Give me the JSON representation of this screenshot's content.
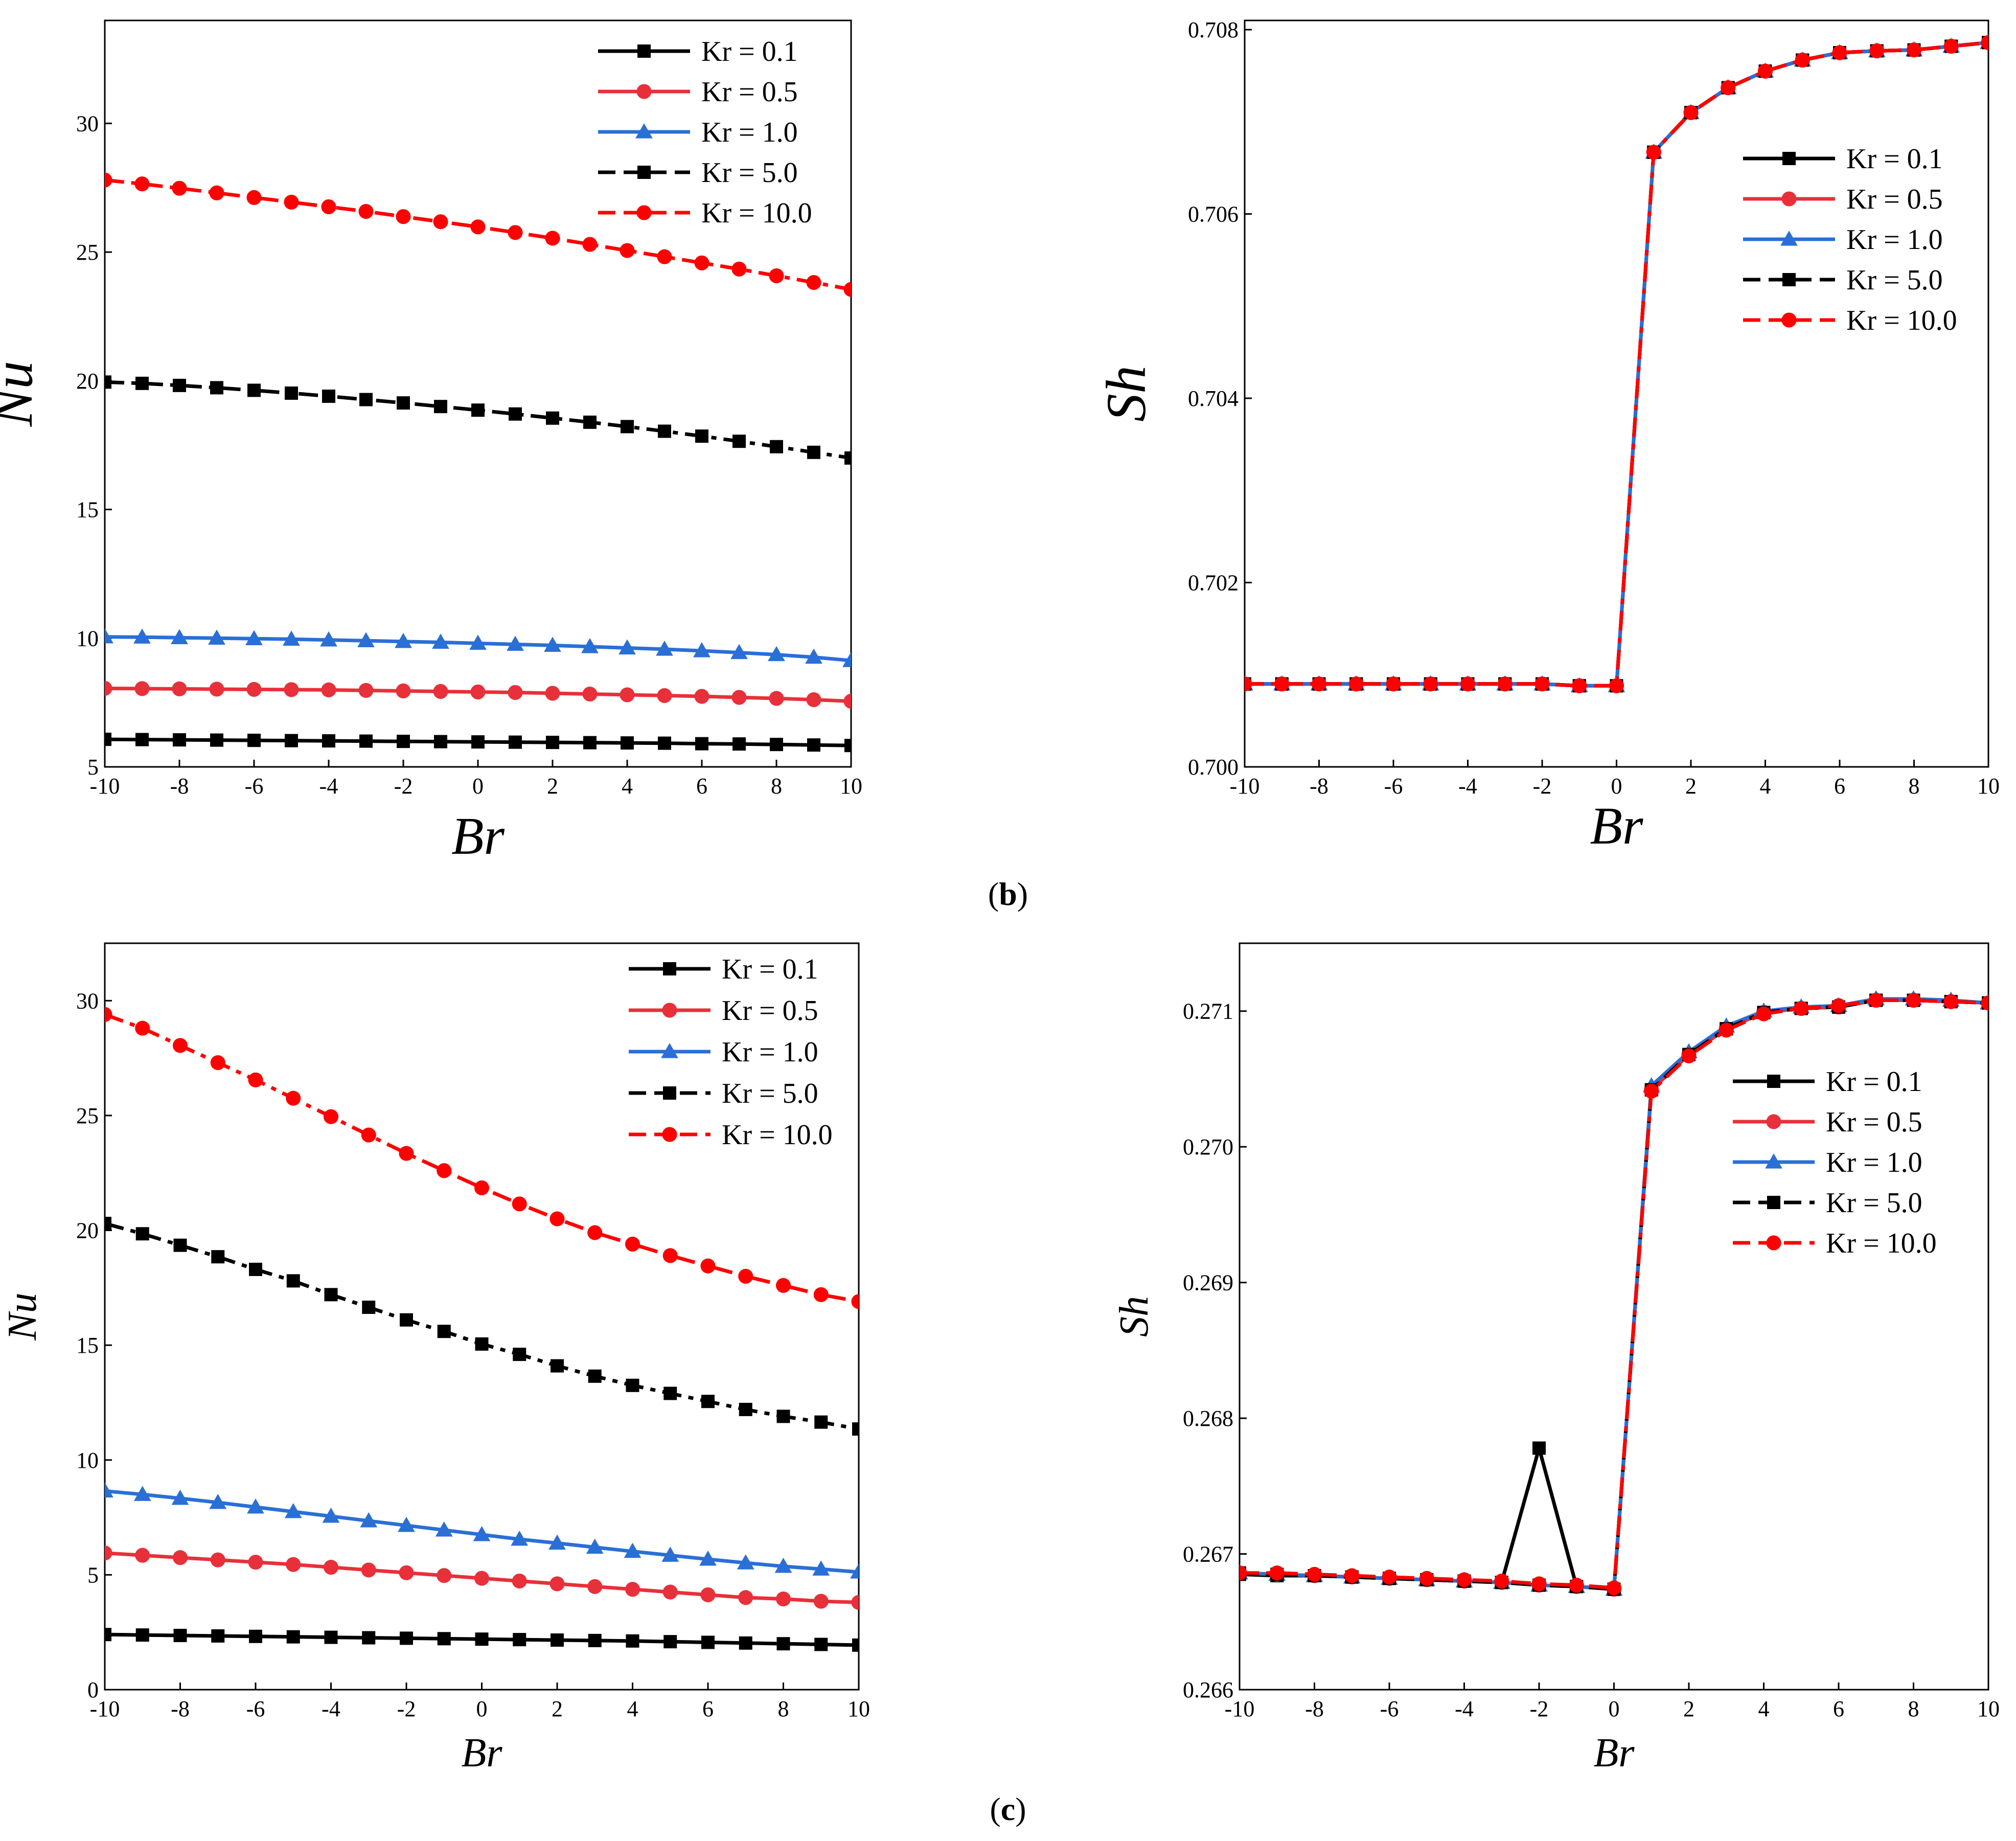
{
  "colors": {
    "black": "#000000",
    "red": "#e8303a",
    "blue": "#2a6fd6",
    "red_dash": "#ff0000"
  },
  "legend_labels": [
    "Kr = 0.1",
    "Kr = 0.5",
    "Kr = 1.0",
    "Kr = 5.0",
    "Kr = 10.0"
  ],
  "panel_labels": [
    {
      "open": "(",
      "letter": "b",
      "close": ")"
    },
    {
      "open": "(",
      "letter": "c",
      "close": ")"
    }
  ],
  "chart_data": [
    {
      "type": "line",
      "xlabel": "Br",
      "ylabel": "Nu",
      "xlim": [
        -10,
        10
      ],
      "ylim": [
        5,
        34
      ],
      "xticks": [
        -10,
        -8,
        -6,
        -4,
        -2,
        0,
        2,
        4,
        6,
        8,
        10
      ],
      "xtick_labels": [
        "-10",
        "-8",
        "-6",
        "-4",
        "-2",
        "0",
        "2",
        "4",
        "6",
        "8",
        "10"
      ],
      "yticks": [
        5,
        10,
        15,
        20,
        25,
        30
      ],
      "ytick_labels": [
        "5",
        "10",
        "15",
        "20",
        "25",
        "30"
      ],
      "legend_position": "top-right",
      "x": [
        -10,
        -9,
        -8,
        -7,
        -6,
        -5,
        -4,
        -3,
        -2,
        -1,
        0,
        1,
        2,
        3,
        4,
        5,
        6,
        7,
        8,
        9,
        10
      ],
      "series": [
        {
          "name": "Kr = 0.1",
          "color": "#000000",
          "dash": "solid",
          "marker": "square",
          "values": [
            6.07,
            6.06,
            6.05,
            6.04,
            6.03,
            6.02,
            6.01,
            6.0,
            5.99,
            5.98,
            5.97,
            5.96,
            5.95,
            5.94,
            5.93,
            5.92,
            5.9,
            5.89,
            5.87,
            5.85,
            5.83
          ]
        },
        {
          "name": "Kr = 0.5",
          "color": "#e8303a",
          "dash": "solid",
          "marker": "circle",
          "values": [
            8.05,
            8.04,
            8.03,
            8.02,
            8.01,
            8.0,
            7.99,
            7.97,
            7.95,
            7.93,
            7.91,
            7.89,
            7.86,
            7.83,
            7.8,
            7.77,
            7.74,
            7.7,
            7.66,
            7.61,
            7.55
          ]
        },
        {
          "name": "Kr = 1.0",
          "color": "#2a6fd6",
          "dash": "solid",
          "marker": "triangle",
          "values": [
            10.05,
            10.04,
            10.02,
            10.0,
            9.98,
            9.96,
            9.93,
            9.9,
            9.87,
            9.84,
            9.8,
            9.76,
            9.72,
            9.67,
            9.62,
            9.57,
            9.51,
            9.44,
            9.36,
            9.26,
            9.13
          ]
        },
        {
          "name": "Kr = 5.0",
          "color": "#000000",
          "dash": "dashdot",
          "marker": "square",
          "values": [
            19.95,
            19.9,
            19.82,
            19.73,
            19.63,
            19.52,
            19.4,
            19.27,
            19.14,
            19.0,
            18.86,
            18.71,
            18.55,
            18.39,
            18.22,
            18.04,
            17.85,
            17.65,
            17.44,
            17.22,
            17.0
          ]
        },
        {
          "name": "Kr = 10.0",
          "color": "#ff0000",
          "dash": "dashdot",
          "marker": "circle",
          "values": [
            27.8,
            27.65,
            27.48,
            27.3,
            27.12,
            26.94,
            26.76,
            26.58,
            26.38,
            26.18,
            25.98,
            25.76,
            25.54,
            25.3,
            25.06,
            24.82,
            24.58,
            24.34,
            24.08,
            23.82,
            23.55
          ]
        }
      ]
    },
    {
      "type": "line",
      "xlabel": "Br",
      "ylabel": "Sh",
      "xlim": [
        -10,
        10
      ],
      "ylim": [
        0.7,
        0.7081
      ],
      "xticks": [
        -10,
        -8,
        -6,
        -4,
        -2,
        0,
        2,
        4,
        6,
        8,
        10
      ],
      "xtick_labels": [
        "-10",
        "-8",
        "-6",
        "-4",
        "-2",
        "0",
        "2",
        "4",
        "6",
        "8",
        "10"
      ],
      "yticks": [
        0.7,
        0.702,
        0.704,
        0.706,
        0.708
      ],
      "ytick_labels": [
        "0.700",
        "0.702",
        "0.704",
        "0.706",
        "0.708"
      ],
      "legend_position": "right",
      "x": [
        -10,
        -9,
        -8,
        -7,
        -6,
        -5,
        -4,
        -3,
        -2,
        -1,
        0,
        1,
        2,
        3,
        4,
        5,
        6,
        7,
        8,
        9,
        10
      ],
      "series": [
        {
          "name": "Kr = 0.1",
          "color": "#000000",
          "dash": "solid",
          "marker": "square",
          "values": [
            0.7009,
            0.7009,
            0.7009,
            0.7009,
            0.7009,
            0.7009,
            0.7009,
            0.7009,
            0.7009,
            0.70088,
            0.70088,
            0.70667,
            0.7071,
            0.70737,
            0.70755,
            0.70767,
            0.70775,
            0.70777,
            0.70778,
            0.70782,
            0.70786
          ]
        },
        {
          "name": "Kr = 0.5",
          "color": "#e8303a",
          "dash": "solid",
          "marker": "circle",
          "values": [
            0.7009,
            0.7009,
            0.7009,
            0.7009,
            0.7009,
            0.7009,
            0.7009,
            0.7009,
            0.7009,
            0.70088,
            0.70088,
            0.70667,
            0.7071,
            0.70737,
            0.70755,
            0.70767,
            0.70775,
            0.70777,
            0.70778,
            0.70782,
            0.70786
          ]
        },
        {
          "name": "Kr = 1.0",
          "color": "#2a6fd6",
          "dash": "solid",
          "marker": "triangle",
          "values": [
            0.7009,
            0.7009,
            0.7009,
            0.7009,
            0.7009,
            0.7009,
            0.7009,
            0.7009,
            0.7009,
            0.70088,
            0.70088,
            0.70667,
            0.7071,
            0.70737,
            0.70755,
            0.70767,
            0.70775,
            0.70777,
            0.70778,
            0.70782,
            0.70786
          ]
        },
        {
          "name": "Kr = 5.0",
          "color": "#000000",
          "dash": "dashdot",
          "marker": "square",
          "values": [
            0.7009,
            0.7009,
            0.7009,
            0.7009,
            0.7009,
            0.7009,
            0.7009,
            0.7009,
            0.7009,
            0.70088,
            0.70088,
            0.70667,
            0.7071,
            0.70737,
            0.70755,
            0.70767,
            0.70775,
            0.70777,
            0.70778,
            0.70782,
            0.70786
          ]
        },
        {
          "name": "Kr = 10.0",
          "color": "#ff0000",
          "dash": "dashdot",
          "marker": "circle",
          "values": [
            0.7009,
            0.7009,
            0.7009,
            0.7009,
            0.7009,
            0.7009,
            0.7009,
            0.7009,
            0.7009,
            0.70088,
            0.70088,
            0.70667,
            0.7071,
            0.70737,
            0.70755,
            0.70767,
            0.70775,
            0.70777,
            0.70778,
            0.70782,
            0.70786
          ]
        }
      ]
    },
    {
      "type": "line",
      "xlabel": "Br",
      "ylabel": "Nu",
      "xlim": [
        -10,
        10
      ],
      "ylim": [
        0,
        32.5
      ],
      "xticks": [
        -10,
        -8,
        -6,
        -4,
        -2,
        0,
        2,
        4,
        6,
        8,
        10
      ],
      "xtick_labels": [
        "-10",
        "-8",
        "-6",
        "-4",
        "-2",
        "0",
        "2",
        "4",
        "6",
        "8",
        "10"
      ],
      "yticks": [
        0,
        5,
        10,
        15,
        20,
        25,
        30
      ],
      "ytick_labels": [
        "0",
        "5",
        "10",
        "15",
        "20",
        "25",
        "30"
      ],
      "legend_position": "top-right",
      "x": [
        -10,
        -9,
        -8,
        -7,
        -6,
        -5,
        -4,
        -3,
        -2,
        -1,
        0,
        1,
        2,
        3,
        4,
        5,
        6,
        7,
        8,
        9,
        10
      ],
      "series": [
        {
          "name": "Kr = 0.1",
          "color": "#000000",
          "dash": "solid",
          "marker": "square",
          "values": [
            2.4,
            2.38,
            2.36,
            2.34,
            2.32,
            2.3,
            2.28,
            2.26,
            2.24,
            2.22,
            2.2,
            2.18,
            2.16,
            2.14,
            2.12,
            2.09,
            2.06,
            2.03,
            2.0,
            1.97,
            1.94
          ]
        },
        {
          "name": "Kr = 0.5",
          "color": "#e8303a",
          "dash": "solid",
          "marker": "circle",
          "values": [
            5.95,
            5.85,
            5.75,
            5.65,
            5.55,
            5.45,
            5.33,
            5.21,
            5.09,
            4.97,
            4.85,
            4.73,
            4.61,
            4.49,
            4.37,
            4.25,
            4.13,
            4.01,
            3.95,
            3.85,
            3.8
          ]
        },
        {
          "name": "Kr = 1.0",
          "color": "#2a6fd6",
          "dash": "solid",
          "marker": "triangle",
          "values": [
            8.65,
            8.5,
            8.33,
            8.15,
            7.95,
            7.75,
            7.55,
            7.35,
            7.15,
            6.95,
            6.75,
            6.55,
            6.38,
            6.2,
            6.02,
            5.85,
            5.68,
            5.52,
            5.37,
            5.25,
            5.12
          ]
        },
        {
          "name": "Kr = 5.0",
          "color": "#000000",
          "dash": "dashdot",
          "marker": "square",
          "values": [
            20.3,
            19.85,
            19.35,
            18.85,
            18.3,
            17.8,
            17.2,
            16.65,
            16.1,
            15.6,
            15.05,
            14.6,
            14.1,
            13.65,
            13.25,
            12.9,
            12.55,
            12.2,
            11.9,
            11.65,
            11.35
          ]
        },
        {
          "name": "Kr = 10.0",
          "color": "#ff0000",
          "dash": "dashdot",
          "marker": "circle",
          "values": [
            29.4,
            28.8,
            28.05,
            27.3,
            26.55,
            25.75,
            24.95,
            24.15,
            23.35,
            22.6,
            21.85,
            21.15,
            20.5,
            19.9,
            19.4,
            18.9,
            18.45,
            18.0,
            17.6,
            17.2,
            16.9
          ]
        }
      ]
    },
    {
      "type": "line",
      "xlabel": "Br",
      "ylabel": "Sh",
      "xlim": [
        -10,
        10
      ],
      "ylim": [
        0.266,
        0.2715
      ],
      "xticks": [
        -10,
        -8,
        -6,
        -4,
        -2,
        0,
        2,
        4,
        6,
        8,
        10
      ],
      "xtick_labels": [
        "-10",
        "-8",
        "-6",
        "-4",
        "-2",
        "0",
        "2",
        "4",
        "6",
        "8",
        "10"
      ],
      "yticks": [
        0.266,
        0.267,
        0.268,
        0.269,
        0.27,
        0.271
      ],
      "ytick_labels": [
        "0.266",
        "0.267",
        "0.268",
        "0.269",
        "0.270",
        "0.271"
      ],
      "legend_position": "right",
      "x": [
        -10,
        -9,
        -8,
        -7,
        -6,
        -5,
        -4,
        -3,
        -2,
        -1,
        0,
        1,
        2,
        3,
        4,
        5,
        6,
        7,
        8,
        9,
        10
      ],
      "series": [
        {
          "name": "Kr = 0.1",
          "color": "#000000",
          "dash": "solid",
          "marker": "square",
          "values": [
            0.26685,
            0.26684,
            0.26684,
            0.26683,
            0.26682,
            0.26681,
            0.2668,
            0.26679,
            0.26778,
            0.26676,
            0.26674,
            0.27042,
            0.27068,
            0.27087,
            0.27099,
            0.27102,
            0.27103,
            0.27108,
            0.27108,
            0.27107,
            0.27106
          ]
        },
        {
          "name": "Kr = 0.5",
          "color": "#e8303a",
          "dash": "solid",
          "marker": "circle",
          "values": [
            0.26686,
            0.26685,
            0.26684,
            0.26683,
            0.26682,
            0.26681,
            0.2668,
            0.26679,
            0.26677,
            0.26676,
            0.26674,
            0.27042,
            0.27068,
            0.27087,
            0.27099,
            0.27102,
            0.27103,
            0.27108,
            0.27108,
            0.27107,
            0.27106
          ]
        },
        {
          "name": "Kr = 1.0",
          "color": "#2a6fd6",
          "dash": "solid",
          "marker": "triangle",
          "values": [
            0.26686,
            0.26685,
            0.26684,
            0.26683,
            0.26682,
            0.26681,
            0.2668,
            0.26679,
            0.26677,
            0.26676,
            0.26674,
            0.27045,
            0.2707,
            0.27089,
            0.271,
            0.27103,
            0.27104,
            0.27109,
            0.27109,
            0.27108,
            0.27106
          ]
        },
        {
          "name": "Kr = 5.0",
          "color": "#000000",
          "dash": "dashdot",
          "marker": "square",
          "values": [
            0.26686,
            0.26685,
            0.26684,
            0.26683,
            0.26682,
            0.26681,
            0.2668,
            0.26679,
            0.26677,
            0.26676,
            0.26674,
            0.27042,
            0.27068,
            0.27087,
            0.27099,
            0.27102,
            0.27103,
            0.27108,
            0.27108,
            0.27107,
            0.27106
          ]
        },
        {
          "name": "Kr = 10.0",
          "color": "#ff0000",
          "dash": "dashdot",
          "marker": "circle",
          "values": [
            0.26686,
            0.26686,
            0.26685,
            0.26684,
            0.26683,
            0.26682,
            0.26681,
            0.2668,
            0.26678,
            0.26677,
            0.26675,
            0.27041,
            0.27067,
            0.27086,
            0.27098,
            0.27102,
            0.27104,
            0.27108,
            0.27108,
            0.27107,
            0.27106
          ]
        }
      ]
    }
  ]
}
